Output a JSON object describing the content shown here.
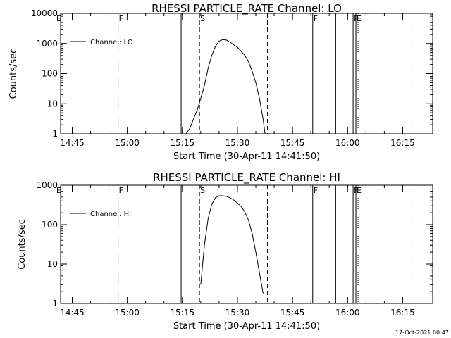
{
  "chart_data": [
    {
      "type": "line",
      "title": "RHESSI PARTICLE_RATE Channel: LO",
      "xlabel": "Start Time (30-Apr-11 14:41:50)",
      "ylabel": "Counts/sec",
      "yscale": "log",
      "ylim": [
        1,
        10000
      ],
      "xlim": [
        "14:41:50",
        "16:23:10"
      ],
      "x_ticks": [
        "14:45",
        "15:00",
        "15:15",
        "15:30",
        "15:45",
        "16:00",
        "16:15"
      ],
      "y_ticks": [
        "1",
        "10",
        "100",
        "1000",
        "10000"
      ],
      "legend": "top-left",
      "series": [
        {
          "name": "Channel: LO",
          "x": [
            "15:16",
            "15:17",
            "15:18",
            "15:19",
            "15:20",
            "15:21",
            "15:22",
            "15:23",
            "15:24",
            "15:25",
            "15:26",
            "15:27",
            "15:28",
            "15:29",
            "15:30",
            "15:31",
            "15:32",
            "15:33",
            "15:34",
            "15:35",
            "15:36",
            "15:37",
            "15:37:30"
          ],
          "y": [
            1.0,
            1.5,
            3.0,
            6.0,
            15,
            40,
            150,
            400,
            800,
            1200,
            1350,
            1300,
            1100,
            900,
            750,
            550,
            400,
            250,
            120,
            50,
            15,
            3,
            1
          ]
        }
      ],
      "markers": [
        {
          "time": "14:57:30",
          "style": "dotted",
          "label": "F"
        },
        {
          "time": "15:14:40",
          "style": "solid",
          "label": ""
        },
        {
          "time": "15:19:40",
          "style": "dashed",
          "label": "S"
        },
        {
          "time": "15:38:10",
          "style": "dashed",
          "label": ""
        },
        {
          "time": "15:50:30",
          "style": "solid",
          "label": "F"
        },
        {
          "time": "15:56:45",
          "style": "solid",
          "label": ""
        },
        {
          "time": "16:01:30",
          "style": "solid",
          "label": "F"
        },
        {
          "time": "16:02:15",
          "style": "solid",
          "label": "E"
        },
        {
          "time": "16:02:50",
          "style": "dotted",
          "label": ""
        },
        {
          "time": "16:17:30",
          "style": "dotted",
          "label": ""
        }
      ],
      "corner_label": "E"
    },
    {
      "type": "line",
      "title": "RHESSI PARTICLE_RATE Channel: HI",
      "xlabel": "Start Time (30-Apr-11 14:41:50)",
      "ylabel": "Counts/sec",
      "yscale": "log",
      "ylim": [
        1,
        1000
      ],
      "xlim": [
        "14:41:50",
        "16:23:10"
      ],
      "x_ticks": [
        "14:45",
        "15:00",
        "15:15",
        "15:30",
        "15:45",
        "16:00",
        "16:15"
      ],
      "y_ticks": [
        "1",
        "10",
        "100",
        "1000"
      ],
      "legend": "top-left",
      "series": [
        {
          "name": "Channel: HI",
          "x": [
            "15:20",
            "15:21",
            "15:22",
            "15:23",
            "15:24",
            "15:25",
            "15:26",
            "15:27",
            "15:28",
            "15:29",
            "15:30",
            "15:31",
            "15:32",
            "15:33",
            "15:34",
            "15:35",
            "15:36",
            "15:37"
          ],
          "y": [
            3,
            30,
            140,
            330,
            480,
            540,
            540,
            520,
            480,
            420,
            350,
            290,
            210,
            130,
            60,
            20,
            6,
            1.8
          ]
        }
      ],
      "markers": [
        {
          "time": "14:57:30",
          "style": "dotted",
          "label": "F"
        },
        {
          "time": "15:14:40",
          "style": "solid",
          "label": ""
        },
        {
          "time": "15:19:40",
          "style": "dashed",
          "label": "S"
        },
        {
          "time": "15:38:10",
          "style": "dashed",
          "label": ""
        },
        {
          "time": "15:50:30",
          "style": "solid",
          "label": "F"
        },
        {
          "time": "15:56:45",
          "style": "solid",
          "label": ""
        },
        {
          "time": "16:01:30",
          "style": "solid",
          "label": "F"
        },
        {
          "time": "16:02:15",
          "style": "solid",
          "label": "E"
        },
        {
          "time": "16:02:50",
          "style": "dotted",
          "label": ""
        },
        {
          "time": "16:17:30",
          "style": "dotted",
          "label": ""
        }
      ],
      "corner_label": "E"
    }
  ],
  "footer": {
    "timestamp": "17-Oct-2021 00:47"
  }
}
